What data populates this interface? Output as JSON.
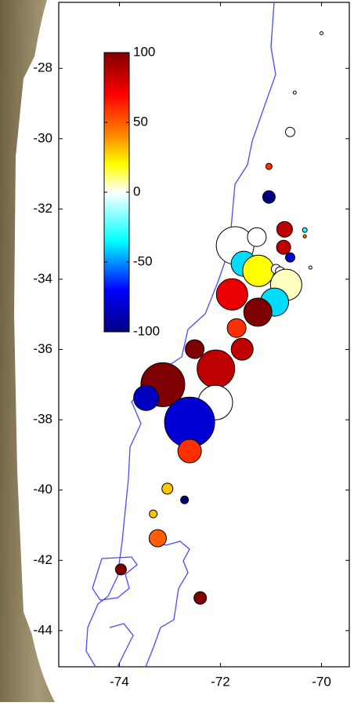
{
  "chart_data": {
    "type": "scatter",
    "x": [
      -70.0,
      -70.53,
      -70.62,
      -71.04,
      -71.04,
      -70.73,
      -70.33,
      -70.33,
      -70.75,
      -70.62,
      -70.22,
      -71.71,
      -71.28,
      -71.54,
      -71.25,
      -70.9,
      -70.82,
      -70.7,
      -70.93,
      -71.77,
      -71.26,
      -71.68,
      -71.57,
      -72.51,
      -72.09,
      -73.14,
      -72.1,
      -73.47,
      -72.61,
      -72.61,
      -73.05,
      -72.71,
      -73.33,
      -73.24,
      -73.97,
      -72.4
    ],
    "y": [
      -27.0,
      -28.69,
      -29.81,
      -30.79,
      -31.66,
      -32.58,
      -32.6,
      -32.78,
      -33.09,
      -33.38,
      -33.67,
      -33.04,
      -32.8,
      -33.56,
      -33.76,
      -33.71,
      -33.78,
      -34.16,
      -34.65,
      -34.43,
      -34.94,
      -35.39,
      -35.99,
      -35.99,
      -36.55,
      -37.0,
      -37.51,
      -37.38,
      -38.07,
      -38.89,
      -39.96,
      -40.28,
      -40.68,
      -41.37,
      -42.26,
      -43.07
    ],
    "sizes": [
      2,
      2,
      6,
      4,
      8,
      10,
      3,
      2,
      9,
      6,
      2,
      24,
      12,
      16,
      20,
      6,
      6,
      20,
      18,
      20,
      18,
      12,
      14,
      12,
      24,
      28,
      22,
      16,
      32,
      15,
      7,
      5,
      5,
      11,
      7,
      8
    ],
    "values": [
      0,
      0,
      0,
      60,
      -100,
      85,
      -30,
      40,
      85,
      -80,
      0,
      0,
      0,
      -40,
      20,
      0,
      0,
      5,
      -40,
      75,
      100,
      60,
      85,
      100,
      85,
      100,
      0,
      -85,
      -80,
      60,
      30,
      -100,
      30,
      50,
      100,
      100
    ],
    "xlim": [
      -75.2,
      -69.45
    ],
    "ylim": [
      -45.03,
      -26.12
    ],
    "xticks": [
      -74,
      -72,
      -70
    ],
    "yticks": [
      -28,
      -30,
      -32,
      -34,
      -36,
      -38,
      -40,
      -42,
      -44
    ],
    "clim": [
      -100,
      100
    ],
    "cticks": [
      100,
      50,
      0,
      -50,
      -100
    ],
    "colormap": [
      [
        -100,
        "#00007f"
      ],
      [
        -70,
        "#0000ff"
      ],
      [
        -35,
        "#00ffff"
      ],
      [
        0,
        "#ffffff"
      ],
      [
        20,
        "#ffff00"
      ],
      [
        40,
        "#ff8c00"
      ],
      [
        70,
        "#ff0000"
      ],
      [
        100,
        "#7f0000"
      ]
    ]
  }
}
